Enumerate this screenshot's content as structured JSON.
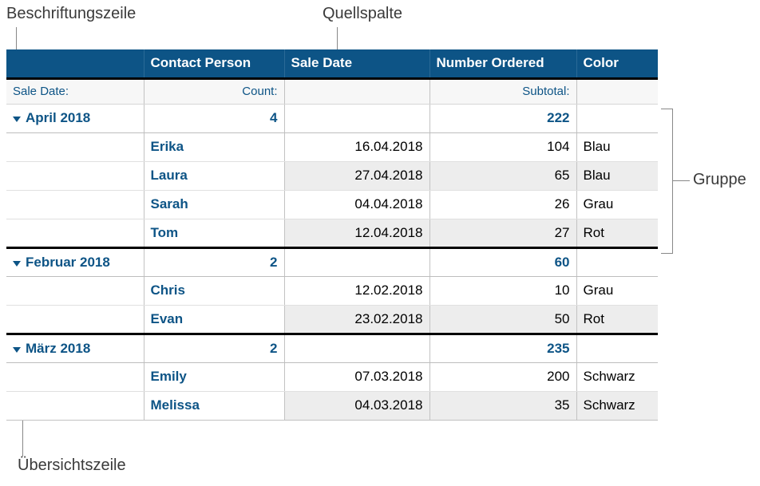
{
  "annotations": {
    "beschriftungszeile": "Beschriftungszeile",
    "quellspalte": "Quellspalte",
    "gruppe": "Gruppe",
    "uebersichtszeile": "Übersichtszeile"
  },
  "columns": {
    "contact": "Contact Person",
    "saleDate": "Sale Date",
    "numberOrdered": "Number Ordered",
    "color": "Color"
  },
  "labelRow": {
    "groupBy": "Sale Date:",
    "count": "Count:",
    "subtotal": "Subtotal:"
  },
  "groups": [
    {
      "name": "April 2018",
      "count": "4",
      "subtotal": "222",
      "rows": [
        {
          "contact": "Erika",
          "date": "16.04.2018",
          "num": "104",
          "color": "Blau"
        },
        {
          "contact": "Laura",
          "date": "27.04.2018",
          "num": "65",
          "color": "Blau"
        },
        {
          "contact": "Sarah",
          "date": "04.04.2018",
          "num": "26",
          "color": "Grau"
        },
        {
          "contact": "Tom",
          "date": "12.04.2018",
          "num": "27",
          "color": "Rot"
        }
      ]
    },
    {
      "name": "Februar 2018",
      "count": "2",
      "subtotal": "60",
      "rows": [
        {
          "contact": "Chris",
          "date": "12.02.2018",
          "num": "10",
          "color": "Grau"
        },
        {
          "contact": "Evan",
          "date": "23.02.2018",
          "num": "50",
          "color": "Rot"
        }
      ]
    },
    {
      "name": "März 2018",
      "count": "2",
      "subtotal": "235",
      "rows": [
        {
          "contact": "Emily",
          "date": "07.03.2018",
          "num": "200",
          "color": "Schwarz"
        },
        {
          "contact": "Melissa",
          "date": "04.03.2018",
          "num": "35",
          "color": "Schwarz"
        }
      ]
    }
  ],
  "style": {
    "headerBg": "#0d5486",
    "headerFg": "#ffffff",
    "accent": "#0d5486",
    "altRowBg": "#ededed",
    "grid": "#c2c2c2"
  }
}
